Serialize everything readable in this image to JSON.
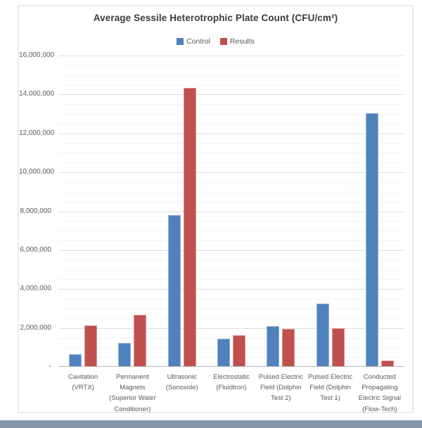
{
  "window": {
    "bottom_bar_color": "#8798ac"
  },
  "chart_data": {
    "type": "bar",
    "title": "Average Sessile Heterotrophic Plate Count (CFU/cm²)",
    "xlabel": "",
    "ylabel": "",
    "ylim": [
      0,
      16000000
    ],
    "y_major_step": 2000000,
    "y_minor_step": 500000,
    "grid": true,
    "legend_position": "top",
    "y_ticks": [
      {
        "label": "-",
        "value": 0
      },
      {
        "label": "2,000,000",
        "value": 2000000
      },
      {
        "label": "4,000,000",
        "value": 4000000
      },
      {
        "label": "6,000,000",
        "value": 6000000
      },
      {
        "label": "8,000,000",
        "value": 8000000
      },
      {
        "label": "10,000,000",
        "value": 10000000
      },
      {
        "label": "12,000,000",
        "value": 12000000
      },
      {
        "label": "14,000,000",
        "value": 14000000
      },
      {
        "label": "16,000,000",
        "value": 16000000
      }
    ],
    "categories": [
      "Cavitation (VRTX)",
      "Permanent Magnets (Superior Water Conditioner)",
      "Ultrasonic (Sonoxide)",
      "Electrostatic (Fluidtron)",
      "Pulsed Electric Field (Dolphin Test 2)",
      "Pulsed Electric Field (Dolphin Test 1)",
      "Conducted Propagating Electric Signal (Flow-Tech)"
    ],
    "series": [
      {
        "name": "Control",
        "color": "#4f81bd",
        "border_color": "#95b3d7",
        "values": [
          600000,
          1200000,
          7750000,
          1400000,
          2050000,
          3200000,
          13000000
        ]
      },
      {
        "name": "Results",
        "color": "#c0504d",
        "border_color": "#d99694",
        "values": [
          2100000,
          2650000,
          14300000,
          1600000,
          1900000,
          1950000,
          300000
        ]
      }
    ]
  }
}
